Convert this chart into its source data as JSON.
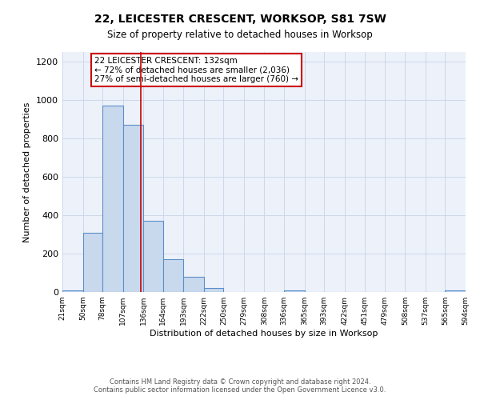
{
  "title": "22, LEICESTER CRESCENT, WORKSOP, S81 7SW",
  "subtitle": "Size of property relative to detached houses in Worksop",
  "xlabel": "Distribution of detached houses by size in Worksop",
  "ylabel": "Number of detached properties",
  "bin_edges": [
    21,
    50,
    78,
    107,
    136,
    164,
    193,
    222,
    250,
    279,
    308,
    336,
    365,
    393,
    422,
    451,
    479,
    508,
    537,
    565,
    594
  ],
  "bin_counts": [
    10,
    308,
    970,
    870,
    370,
    170,
    80,
    20,
    0,
    0,
    0,
    10,
    0,
    0,
    0,
    0,
    0,
    0,
    0,
    10
  ],
  "bar_facecolor": "#c9d9ed",
  "bar_edgecolor": "#5b8fc9",
  "bar_linewidth": 0.8,
  "vline_x": 132,
  "vline_color": "#cc0000",
  "vline_linewidth": 1.2,
  "annotation_title": "22 LEICESTER CRESCENT: 132sqm",
  "annotation_line1": "← 72% of detached houses are smaller (2,036)",
  "annotation_line2": "27% of semi-detached houses are larger (760) →",
  "annotation_box_edgecolor": "#cc0000",
  "annotation_box_facecolor": "#ffffff",
  "ylim": [
    0,
    1250
  ],
  "yticks": [
    0,
    200,
    400,
    600,
    800,
    1000,
    1200
  ],
  "grid_color": "#c8d4e8",
  "background_color": "#edf2fa",
  "footer_line1": "Contains HM Land Registry data © Crown copyright and database right 2024.",
  "footer_line2": "Contains public sector information licensed under the Open Government Licence v3.0.",
  "tick_labels": [
    "21sqm",
    "50sqm",
    "78sqm",
    "107sqm",
    "136sqm",
    "164sqm",
    "193sqm",
    "222sqm",
    "250sqm",
    "279sqm",
    "308sqm",
    "336sqm",
    "365sqm",
    "393sqm",
    "422sqm",
    "451sqm",
    "479sqm",
    "508sqm",
    "537sqm",
    "565sqm",
    "594sqm"
  ]
}
